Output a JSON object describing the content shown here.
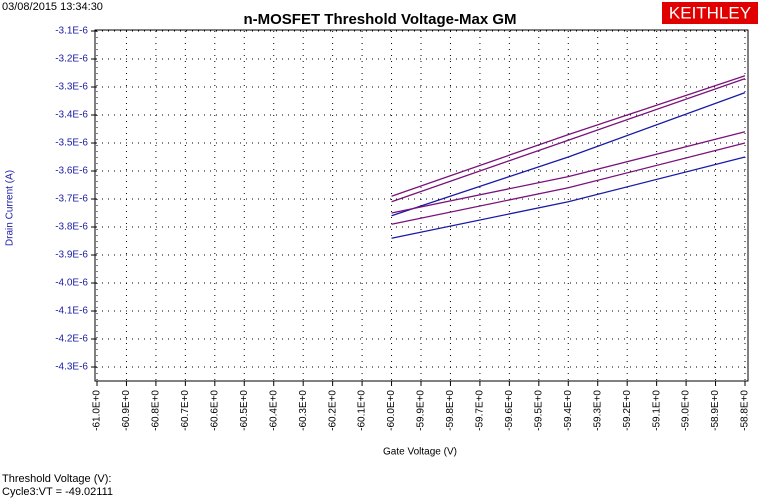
{
  "chart_data": {
    "type": "line",
    "timestamp": "03/08/2015 13:34:30",
    "title": "n-MOSFET Threshold Voltage-Max GM",
    "brand": "KEITHLEY",
    "xlabel": "Gate Voltage (V)",
    "ylabel": "Drain Current (A)",
    "annotations": [
      "Threshold Voltage (V):",
      "Cycle3:VT = -49.02111"
    ],
    "x": [
      -60.0,
      -59.4,
      -58.8
    ],
    "series": [
      {
        "color": "#7a127a",
        "values": [
          -3.69e-06,
          -3.47e-06,
          -3.26e-06
        ]
      },
      {
        "color": "#7a127a",
        "values": [
          -3.71e-06,
          -3.49e-06,
          -3.27e-06
        ]
      },
      {
        "color": "#1a1aa6",
        "values": [
          -3.76e-06,
          -3.55e-06,
          -3.32e-06
        ]
      },
      {
        "color": "#7a127a",
        "values": [
          -3.75e-06,
          -3.62e-06,
          -3.46e-06
        ]
      },
      {
        "color": "#7a127a",
        "values": [
          -3.79e-06,
          -3.66e-06,
          -3.5e-06
        ]
      },
      {
        "color": "#1a1aa6",
        "values": [
          -3.84e-06,
          -3.71e-06,
          -3.55e-06
        ]
      }
    ],
    "xlim": [
      -61.0,
      -58.8
    ],
    "xticks": [
      {
        "value": -61.0,
        "label": "-61.0E+0"
      },
      {
        "value": -60.9,
        "label": "-60.9E+0"
      },
      {
        "value": -60.8,
        "label": "-60.8E+0"
      },
      {
        "value": -60.7,
        "label": "-60.7E+0"
      },
      {
        "value": -60.6,
        "label": "-60.6E+0"
      },
      {
        "value": -60.5,
        "label": "-60.5E+0"
      },
      {
        "value": -60.4,
        "label": "-60.4E+0"
      },
      {
        "value": -60.3,
        "label": "-60.3E+0"
      },
      {
        "value": -60.2,
        "label": "-60.2E+0"
      },
      {
        "value": -60.1,
        "label": "-60.1E+0"
      },
      {
        "value": -60.0,
        "label": "-60.0E+0"
      },
      {
        "value": -59.9,
        "label": "-59.9E+0"
      },
      {
        "value": -59.8,
        "label": "-59.8E+0"
      },
      {
        "value": -59.7,
        "label": "-59.7E+0"
      },
      {
        "value": -59.6,
        "label": "-59.6E+0"
      },
      {
        "value": -59.5,
        "label": "-59.5E+0"
      },
      {
        "value": -59.4,
        "label": "-59.4E+0"
      },
      {
        "value": -59.3,
        "label": "-59.3E+0"
      },
      {
        "value": -59.2,
        "label": "-59.2E+0"
      },
      {
        "value": -59.1,
        "label": "-59.1E+0"
      },
      {
        "value": -59.0,
        "label": "-59.0E+0"
      },
      {
        "value": -58.9,
        "label": "-58.9E+0"
      },
      {
        "value": -58.8,
        "label": "-58.8E+0"
      }
    ],
    "ylim": [
      -4.35e-06,
      -3.1e-06
    ],
    "yticks": [
      {
        "value": -3.1e-06,
        "label": "-3.1E-6"
      },
      {
        "value": -3.2e-06,
        "label": "-3.2E-6"
      },
      {
        "value": -3.3e-06,
        "label": "-3.3E-6"
      },
      {
        "value": -3.4e-06,
        "label": "-3.4E-6"
      },
      {
        "value": -3.5e-06,
        "label": "-3.5E-6"
      },
      {
        "value": -3.6e-06,
        "label": "-3.6E-6"
      },
      {
        "value": -3.7e-06,
        "label": "-3.7E-6"
      },
      {
        "value": -3.8e-06,
        "label": "-3.8E-6"
      },
      {
        "value": -3.9e-06,
        "label": "-3.9E-6"
      },
      {
        "value": -4e-06,
        "label": "-4.0E-6"
      },
      {
        "value": -4.1e-06,
        "label": "-4.1E-6"
      },
      {
        "value": -4.2e-06,
        "label": "-4.2E-6"
      },
      {
        "value": -4.3e-06,
        "label": "-4.3E-6"
      }
    ],
    "grid": true
  }
}
